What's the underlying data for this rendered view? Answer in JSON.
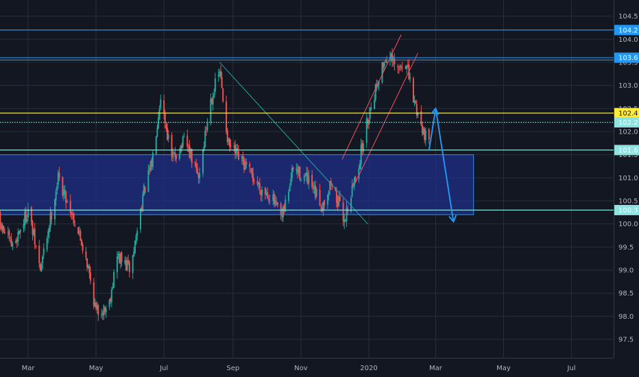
{
  "chart_data": {
    "type": "candlestick",
    "title": "",
    "xlabel": "",
    "ylabel": "",
    "ylim": [
      97.1,
      104.85
    ],
    "x_ticks": [
      "Mar",
      "May",
      "Jul",
      "Sep",
      "Nov",
      "2020",
      "Mar",
      "May",
      "Jul"
    ],
    "y_ticks": [
      "104.5",
      "104.0",
      "103.5",
      "103.0",
      "102.5",
      "102.0",
      "101.5",
      "101.0",
      "100.5",
      "100.0",
      "99.5",
      "99.0",
      "98.5",
      "98.0",
      "97.5"
    ],
    "grid": true,
    "colors": {
      "background": "#131722",
      "grid": "#2a2e39",
      "up": "#26a69a",
      "down": "#ef5350",
      "zone": "#1e2f8a",
      "horizontal_lines": "#2196f3",
      "yellow_line": "#ffeb3b",
      "teal_line": "#8fe2e0",
      "trendline": "#26a69a",
      "channel": "#f7525f",
      "arrow": "#2196f3"
    },
    "candle_anchors": [
      [
        "2019-02-01",
        100.1
      ],
      [
        "2019-02-15",
        99.5
      ],
      [
        "2019-03-01",
        100.3
      ],
      [
        "2019-03-12",
        99.0
      ],
      [
        "2019-03-28",
        101.0
      ],
      [
        "2019-04-10",
        100.2
      ],
      [
        "2019-04-22",
        99.3
      ],
      [
        "2019-05-01",
        98.1
      ],
      [
        "2019-05-12",
        98.2
      ],
      [
        "2019-05-20",
        99.3
      ],
      [
        "2019-06-01",
        99.0
      ],
      [
        "2019-06-12",
        100.6
      ],
      [
        "2019-06-20",
        101.3
      ],
      [
        "2019-06-28",
        102.8
      ],
      [
        "2019-07-08",
        101.4
      ],
      [
        "2019-07-20",
        101.8
      ],
      [
        "2019-08-01",
        101.0
      ],
      [
        "2019-08-12",
        102.7
      ],
      [
        "2019-08-20",
        103.3
      ],
      [
        "2019-08-28",
        101.7
      ],
      [
        "2019-09-10",
        101.3
      ],
      [
        "2019-09-25",
        100.8
      ],
      [
        "2019-10-05",
        100.6
      ],
      [
        "2019-10-15",
        100.1
      ],
      [
        "2019-10-25",
        101.2
      ],
      [
        "2019-11-05",
        101.0
      ],
      [
        "2019-11-20",
        100.4
      ],
      [
        "2019-11-28",
        100.9
      ],
      [
        "2019-12-10",
        100.1
      ],
      [
        "2019-12-22",
        101.2
      ],
      [
        "2020-01-01",
        102.4
      ],
      [
        "2020-01-10",
        103.2
      ],
      [
        "2020-01-18",
        103.7
      ],
      [
        "2020-01-26",
        103.3
      ],
      [
        "2020-02-03",
        103.5
      ],
      [
        "2020-02-10",
        102.7
      ],
      [
        "2020-02-18",
        102.1
      ],
      [
        "2020-02-24",
        101.7
      ]
    ],
    "zone": {
      "from": "2019-02-01",
      "to": "2020-04-04",
      "top": 101.5,
      "bottom": 100.2
    },
    "horizontal_lines": [
      {
        "value": 104.2,
        "label": "104.2",
        "style": "solid",
        "color": "#2196f3"
      },
      {
        "value": 103.6,
        "label": "103.6",
        "style": "solid",
        "color": "#2196f3"
      },
      {
        "value": 103.55,
        "style": "solid",
        "color": "#2196f3"
      },
      {
        "value": 102.4,
        "label": "102.4",
        "style": "solid",
        "color": "#ffeb3b"
      },
      {
        "value": 102.2,
        "label": "102.2",
        "style": "dotted",
        "color": "#8fe2e0"
      },
      {
        "value": 101.6,
        "label": "101.6",
        "style": "solid",
        "color": "#8fe2e0"
      },
      {
        "value": 100.3,
        "label": "100.3",
        "style": "solid",
        "color": "#8fe2e0"
      }
    ],
    "trendlines": [
      {
        "from": [
          "2019-08-20",
          103.5
        ],
        "to": [
          "2019-12-31",
          100.0
        ],
        "color": "#26a69a"
      },
      {
        "from": [
          "2019-12-08",
          101.4
        ],
        "to": [
          "2020-01-30",
          104.1
        ],
        "color": "#f7525f"
      },
      {
        "from": [
          "2019-12-20",
          100.9
        ],
        "to": [
          "2020-02-14",
          103.7
        ],
        "color": "#f7525f"
      }
    ],
    "projection_arrow": [
      [
        "2020-02-24",
        101.6
      ],
      [
        "2020-03-01",
        102.5
      ],
      [
        "2020-03-17",
        100.05
      ]
    ]
  }
}
